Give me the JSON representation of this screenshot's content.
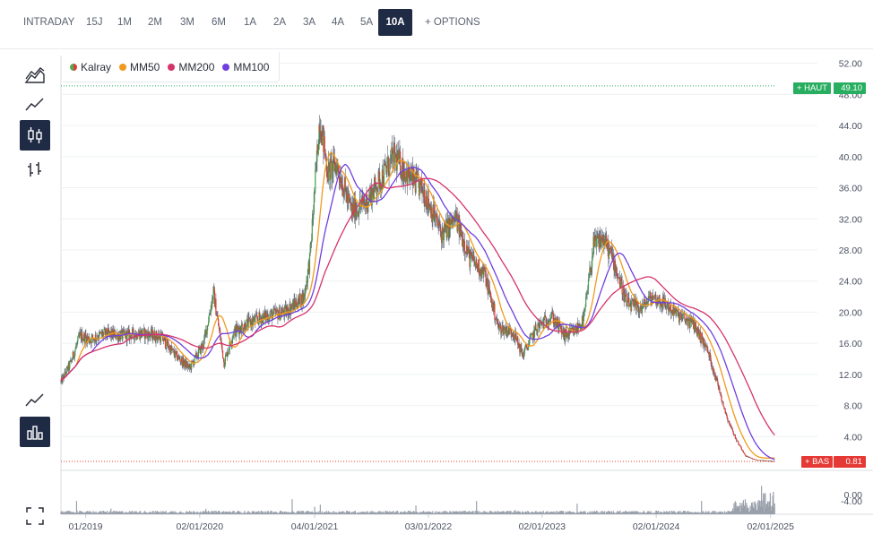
{
  "ranges": [
    {
      "label": "INTRADAY",
      "name": "range-intraday"
    },
    {
      "label": "15J",
      "name": "range-15j"
    },
    {
      "label": "1M",
      "name": "range-1m"
    },
    {
      "label": "2M",
      "name": "range-2m"
    },
    {
      "label": "3M",
      "name": "range-3m"
    },
    {
      "label": "6M",
      "name": "range-6m"
    },
    {
      "label": "1A",
      "name": "range-1a"
    },
    {
      "label": "2A",
      "name": "range-2a"
    },
    {
      "label": "3A",
      "name": "range-3a"
    },
    {
      "label": "4A",
      "name": "range-4a"
    },
    {
      "label": "5A",
      "name": "range-5a"
    },
    {
      "label": "10A",
      "name": "range-10a",
      "active": true
    },
    {
      "label": "+ OPTIONS",
      "name": "options-button"
    }
  ],
  "sidebar": {
    "top": [
      "area-chart-icon",
      "line-chart-icon",
      "candlestick-icon",
      "ohlc-bar-icon"
    ],
    "bottom": [
      "volume-line-icon",
      "volume-bar-icon",
      "fullscreen-icon"
    ]
  },
  "legend": [
    {
      "label": "Kalray",
      "color": "#4caf50",
      "color2": "#e53935"
    },
    {
      "label": "MM50",
      "color": "#f09a1e"
    },
    {
      "label": "MM200",
      "color": "#d6336c"
    },
    {
      "label": "MM100",
      "color": "#6f3fe0"
    }
  ],
  "tags": {
    "high_label": "+ HAUT",
    "high_value": "49.10",
    "low_label": "+ BAS",
    "low_value": "0.81"
  },
  "chart_data": {
    "type": "candlestick",
    "x_ticks": [
      "01/2019",
      "02/01/2020",
      "04/01/2021",
      "03/01/2022",
      "02/01/2023",
      "02/01/2024",
      "02/01/2025"
    ],
    "x_tick_dates": [
      "2019-01-02",
      "2020-01-02",
      "2021-01-04",
      "2022-01-03",
      "2023-01-02",
      "2024-01-02",
      "2025-01-02"
    ],
    "x_range": [
      "2018-10-15",
      "2025-01-20"
    ],
    "y_ticks": [
      "52.00",
      "48.00",
      "44.00",
      "40.00",
      "36.00",
      "32.00",
      "28.00",
      "24.00",
      "20.00",
      "16.00",
      "12.00",
      "8.00",
      "4.00"
    ],
    "ylim": [
      0,
      53
    ],
    "volume_ticks": [
      "0.00",
      "-4.00"
    ],
    "high": 49.1,
    "low": 0.81,
    "price_path": [
      [
        "2018-10-15",
        11.0
      ],
      [
        "2018-11-15",
        13.5
      ],
      [
        "2018-12-15",
        17.0
      ],
      [
        "2019-01-15",
        16.5
      ],
      [
        "2019-03-01",
        17.2
      ],
      [
        "2019-05-01",
        17.0
      ],
      [
        "2019-07-01",
        17.3
      ],
      [
        "2019-09-01",
        16.8
      ],
      [
        "2019-10-15",
        14.5
      ],
      [
        "2019-12-01",
        12.8
      ],
      [
        "2020-01-15",
        16.0
      ],
      [
        "2020-02-15",
        22.5
      ],
      [
        "2020-03-20",
        13.5
      ],
      [
        "2020-04-20",
        17.5
      ],
      [
        "2020-06-01",
        18.5
      ],
      [
        "2020-08-01",
        19.5
      ],
      [
        "2020-10-01",
        20.0
      ],
      [
        "2020-12-01",
        22.0
      ],
      [
        "2020-12-20",
        27.0
      ],
      [
        "2021-01-20",
        45.0
      ],
      [
        "2021-02-15",
        38.0
      ],
      [
        "2021-03-15",
        39.0
      ],
      [
        "2021-05-01",
        33.0
      ],
      [
        "2021-06-15",
        34.0
      ],
      [
        "2021-08-01",
        37.0
      ],
      [
        "2021-09-15",
        40.0
      ],
      [
        "2021-11-01",
        37.5
      ],
      [
        "2021-12-20",
        35.5
      ],
      [
        "2022-02-15",
        30.0
      ],
      [
        "2022-04-01",
        32.0
      ],
      [
        "2022-05-15",
        27.0
      ],
      [
        "2022-07-01",
        25.0
      ],
      [
        "2022-08-15",
        18.0
      ],
      [
        "2022-10-01",
        17.5
      ],
      [
        "2022-11-01",
        14.5
      ],
      [
        "2022-12-15",
        18.0
      ],
      [
        "2023-02-01",
        19.5
      ],
      [
        "2023-03-15",
        17.0
      ],
      [
        "2023-04-15",
        17.5
      ],
      [
        "2023-05-15",
        19.0
      ],
      [
        "2023-06-15",
        28.5
      ],
      [
        "2023-07-15",
        29.5
      ],
      [
        "2023-08-15",
        27.0
      ],
      [
        "2023-10-01",
        21.0
      ],
      [
        "2023-11-15",
        20.5
      ],
      [
        "2023-12-20",
        22.0
      ],
      [
        "2024-02-01",
        21.0
      ],
      [
        "2024-03-15",
        19.5
      ],
      [
        "2024-05-01",
        18.5
      ],
      [
        "2024-06-15",
        15.0
      ],
      [
        "2024-07-15",
        11.0
      ],
      [
        "2024-08-15",
        6.5
      ],
      [
        "2024-09-15",
        3.5
      ],
      [
        "2024-10-15",
        1.5
      ],
      [
        "2024-11-15",
        1.0
      ],
      [
        "2024-12-15",
        0.9
      ],
      [
        "2025-01-15",
        0.81
      ]
    ],
    "ma_windows": {
      "MM50": 50,
      "MM100": 100,
      "MM200": 200
    }
  }
}
